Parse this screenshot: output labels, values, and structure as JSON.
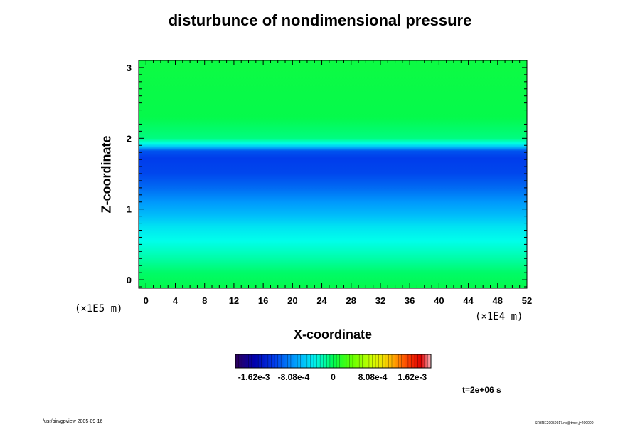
{
  "chart_data": {
    "type": "heatmap",
    "title": "disturbunce of nondimensional pressure",
    "xlabel": "X-coordinate",
    "ylabel": "Z-coordinate",
    "x_unit": "(×1E4 m)",
    "y_unit": "(×1E5 m)",
    "xlim": [
      -1,
      52
    ],
    "ylim": [
      -0.12,
      3.1
    ],
    "x_ticks": [
      0,
      4,
      8,
      12,
      16,
      20,
      24,
      28,
      32,
      36,
      40,
      44,
      48,
      52
    ],
    "y_ticks": [
      0,
      1,
      2,
      3
    ],
    "z_profile": [
      {
        "z": 3.1,
        "value": 5e-05
      },
      {
        "z": 2.3,
        "value": 2e-05
      },
      {
        "z": 2.0,
        "value": -0.0001
      },
      {
        "z": 1.93,
        "value": -0.0003
      },
      {
        "z": 1.88,
        "value": -0.0006
      },
      {
        "z": 1.82,
        "value": -0.0011
      },
      {
        "z": 1.72,
        "value": -0.0012
      },
      {
        "z": 1.5,
        "value": -0.00115
      },
      {
        "z": 1.3,
        "value": -0.001
      },
      {
        "z": 1.1,
        "value": -0.0008
      },
      {
        "z": 0.9,
        "value": -0.00062
      },
      {
        "z": 0.75,
        "value": -0.00045
      },
      {
        "z": 0.55,
        "value": -0.00032
      },
      {
        "z": 0.3,
        "value": -0.00018
      },
      {
        "z": 0.1,
        "value": -5e-05
      },
      {
        "z": -0.12,
        "value": 2e-05
      }
    ],
    "colorbar": {
      "min": -0.002,
      "max": 0.002,
      "tick_labels": [
        "-1.62e-3",
        "-8.08e-4",
        "0",
        "8.08e-4",
        "1.62e-3"
      ],
      "tick_values": [
        -0.00162,
        -0.000808,
        0,
        0.000808,
        0.00162
      ]
    },
    "annotation_time": "t=2e+06 s",
    "grid": false,
    "legend": "colorbar-bottom"
  },
  "footer": {
    "left": "/usr/bin/gpview 2005-09-16",
    "right": "SR3RE20050917.nc@tmer,j=200000"
  }
}
